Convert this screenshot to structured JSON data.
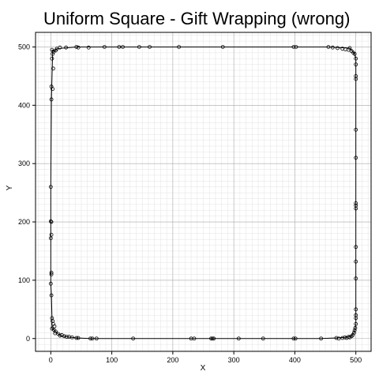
{
  "chart_data": {
    "type": "scatter",
    "title": "Uniform Square - Gift Wrapping (wrong)",
    "xlabel": "X",
    "ylabel": "Y",
    "xlim": [
      -25,
      525
    ],
    "ylim": [
      -22,
      525
    ],
    "xticks": [
      0,
      100,
      200,
      300,
      400,
      500
    ],
    "yticks": [
      0,
      100,
      200,
      300,
      400,
      500
    ],
    "minor_step": 10,
    "grid": true,
    "points": [
      [
        2,
        495
      ],
      [
        5,
        492
      ],
      [
        8,
        494
      ],
      [
        10,
        497
      ],
      [
        15,
        499
      ],
      [
        25,
        499
      ],
      [
        42,
        500
      ],
      [
        45,
        499
      ],
      [
        62,
        499
      ],
      [
        88,
        500
      ],
      [
        112,
        500
      ],
      [
        118,
        500
      ],
      [
        145,
        500
      ],
      [
        162,
        500
      ],
      [
        210,
        500
      ],
      [
        282,
        500
      ],
      [
        398,
        500
      ],
      [
        402,
        500
      ],
      [
        455,
        500
      ],
      [
        462,
        499
      ],
      [
        470,
        498
      ],
      [
        478,
        497
      ],
      [
        483,
        496
      ],
      [
        488,
        495
      ],
      [
        490,
        498
      ],
      [
        493,
        493
      ],
      [
        496,
        490
      ],
      [
        498,
        488
      ],
      [
        3,
        488
      ],
      [
        2,
        480
      ],
      [
        4,
        463
      ],
      [
        1,
        432
      ],
      [
        3,
        428
      ],
      [
        1,
        410
      ],
      [
        0,
        260
      ],
      [
        0,
        201
      ],
      [
        1,
        200
      ],
      [
        1,
        178
      ],
      [
        0,
        172
      ],
      [
        1,
        113
      ],
      [
        1,
        110
      ],
      [
        0,
        94
      ],
      [
        1,
        74
      ],
      [
        2,
        35
      ],
      [
        3,
        30
      ],
      [
        4,
        25
      ],
      [
        6,
        21
      ],
      [
        2,
        17
      ],
      [
        5,
        15
      ],
      [
        8,
        12
      ],
      [
        7,
        9
      ],
      [
        12,
        8
      ],
      [
        15,
        5
      ],
      [
        18,
        6
      ],
      [
        22,
        4
      ],
      [
        26,
        3
      ],
      [
        30,
        3
      ],
      [
        35,
        2
      ],
      [
        42,
        1
      ],
      [
        45,
        1
      ],
      [
        65,
        0
      ],
      [
        68,
        0
      ],
      [
        75,
        0
      ],
      [
        135,
        0
      ],
      [
        230,
        0
      ],
      [
        235,
        0
      ],
      [
        263,
        0
      ],
      [
        265,
        0
      ],
      [
        267,
        0
      ],
      [
        308,
        0
      ],
      [
        348,
        0
      ],
      [
        398,
        0
      ],
      [
        401,
        0
      ],
      [
        443,
        0
      ],
      [
        468,
        1
      ],
      [
        472,
        0
      ],
      [
        478,
        1
      ],
      [
        482,
        2
      ],
      [
        485,
        1
      ],
      [
        488,
        3
      ],
      [
        490,
        2
      ],
      [
        493,
        4
      ],
      [
        495,
        6
      ],
      [
        497,
        10
      ],
      [
        498,
        14
      ],
      [
        499,
        18
      ],
      [
        500,
        25
      ],
      [
        500,
        35
      ],
      [
        500,
        40
      ],
      [
        500,
        50
      ],
      [
        500,
        103
      ],
      [
        500,
        132
      ],
      [
        500,
        157
      ],
      [
        500,
        223
      ],
      [
        500,
        228
      ],
      [
        500,
        232
      ],
      [
        500,
        310
      ],
      [
        500,
        358
      ],
      [
        500,
        445
      ],
      [
        500,
        450
      ],
      [
        500,
        470
      ],
      [
        500,
        480
      ]
    ],
    "hull": [
      [
        2,
        495
      ],
      [
        5,
        492
      ],
      [
        10,
        497
      ],
      [
        42,
        500
      ],
      [
        455,
        500
      ],
      [
        490,
        498
      ],
      [
        498,
        488
      ],
      [
        500,
        480
      ],
      [
        500,
        25
      ],
      [
        499,
        18
      ],
      [
        497,
        10
      ],
      [
        493,
        4
      ],
      [
        482,
        2
      ],
      [
        468,
        1
      ],
      [
        443,
        0
      ],
      [
        65,
        0
      ],
      [
        42,
        1
      ],
      [
        26,
        3
      ],
      [
        15,
        5
      ],
      [
        8,
        12
      ],
      [
        5,
        15
      ],
      [
        2,
        17
      ],
      [
        2,
        35
      ],
      [
        1,
        74
      ],
      [
        0,
        94
      ],
      [
        0,
        260
      ],
      [
        1,
        410
      ],
      [
        3,
        488
      ],
      [
        2,
        495
      ]
    ]
  }
}
